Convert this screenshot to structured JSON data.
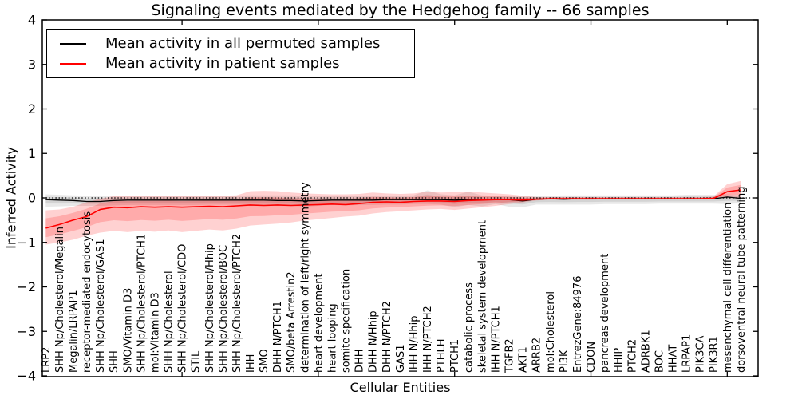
{
  "title": "Signaling events mediated by the Hedgehog family -- 66 samples",
  "axes": {
    "ylabel": "Inferred Activity",
    "xlabel": "Cellular Entities",
    "ylim": [
      -4,
      4
    ],
    "yticks": [
      4,
      3,
      2,
      1,
      0,
      -1,
      -2,
      -3,
      -4
    ],
    "x_major_tick_step": 10
  },
  "colors": {
    "permuted_line": "#000000",
    "patient_line": "#ff0000",
    "band_gray": "#000000",
    "band_red": "#ff0000",
    "axis": "#000000"
  },
  "chart_data": {
    "type": "line",
    "title": "Signaling events mediated by the Hedgehog family -- 66 samples",
    "xlabel": "Cellular Entities",
    "ylabel": "Inferred Activity",
    "ylim": [
      -4,
      4
    ],
    "grid": false,
    "legend_position": "upper left",
    "reference_line": {
      "y": 0,
      "style": "dotted",
      "color": "#000000"
    },
    "categories": [
      "LRP2",
      "SHH Np/Cholesterol/Megalin",
      "Megalin/LRPAP1",
      "receptor-mediated endocytosis",
      "SHH Np/Cholesterol/GAS1",
      "SHH",
      "SMO/Vitamin D3",
      "SHH Np/Cholesterol/PTCH1",
      "mol:Vitamin D3",
      "SHH Np/Cholesterol",
      "SHH Np/Cholesterol/CDO",
      "STIL",
      "SHH Np/Cholesterol/Hhip",
      "SHH Np/Cholesterol/BOC",
      "SHH Np/Cholesterol/PTCH2",
      "IHH",
      "SMO",
      "DHH N/PTCH1",
      "SMO/beta Arrestin2",
      "determination of left/right symmetry",
      "heart development",
      "heart looping",
      "somite specification",
      "DHH",
      "DHH N/Hhip",
      "DHH N/PTCH2",
      "GAS1",
      "IHH N/Hhip",
      "IHH N/PTCH2",
      "PTHLH",
      "PTCH1",
      "catabolic process",
      "skeletal system development",
      "IHH N/PTCH1",
      "TGFB2",
      "AKT1",
      "ARRB2",
      "mol:Cholesterol",
      "PI3K",
      "EntrezGene:84976",
      "CDON",
      "pancreas development",
      "HHIP",
      "PTCH2",
      "ADRBK1",
      "BOC",
      "HHAT",
      "LRPAP1",
      "PIK3CA",
      "PIK3R1",
      "mesenchymal cell differentiation",
      "dorsoventral neural tube patterning"
    ],
    "series": [
      {
        "name": "Mean activity in all permuted samples",
        "color": "#000000",
        "values": [
          -0.04,
          -0.05,
          -0.06,
          -0.08,
          -0.08,
          -0.06,
          -0.05,
          -0.05,
          -0.05,
          -0.05,
          -0.05,
          -0.05,
          -0.05,
          -0.05,
          -0.05,
          -0.05,
          -0.05,
          -0.06,
          -0.06,
          -0.07,
          -0.06,
          -0.05,
          -0.05,
          -0.05,
          -0.05,
          -0.04,
          -0.04,
          -0.04,
          -0.04,
          -0.04,
          -0.05,
          -0.04,
          -0.04,
          -0.03,
          -0.04,
          -0.07,
          -0.03,
          -0.02,
          -0.03,
          -0.02,
          -0.02,
          -0.02,
          -0.02,
          -0.02,
          -0.02,
          -0.02,
          -0.02,
          -0.02,
          -0.02,
          -0.02,
          0.02,
          -0.01
        ],
        "band_low": [
          -0.2,
          -0.19,
          -0.18,
          -0.18,
          -0.18,
          -0.17,
          -0.16,
          -0.16,
          -0.16,
          -0.16,
          -0.16,
          -0.16,
          -0.15,
          -0.15,
          -0.15,
          -0.15,
          -0.16,
          -0.16,
          -0.17,
          -0.2,
          -0.18,
          -0.16,
          -0.17,
          -0.16,
          -0.16,
          -0.15,
          -0.15,
          -0.14,
          -0.14,
          -0.15,
          -0.21,
          -0.16,
          -0.19,
          -0.14,
          -0.2,
          -0.21,
          -0.15,
          -0.15,
          -0.15,
          -0.15,
          -0.15,
          -0.14,
          -0.14,
          -0.14,
          -0.14,
          -0.13,
          -0.13,
          -0.13,
          -0.13,
          -0.13,
          -0.14,
          -0.12
        ],
        "band_high": [
          0.08,
          0.07,
          0.06,
          0.05,
          0.05,
          0.05,
          0.05,
          0.05,
          0.05,
          0.05,
          0.05,
          0.05,
          0.05,
          0.05,
          0.05,
          0.06,
          0.06,
          0.06,
          0.06,
          0.05,
          0.05,
          0.05,
          0.05,
          0.05,
          0.05,
          0.05,
          0.05,
          0.06,
          0.17,
          0.08,
          0.06,
          0.14,
          0.06,
          0.05,
          0.05,
          0.05,
          0.05,
          0.05,
          0.06,
          0.06,
          0.06,
          0.06,
          0.06,
          0.06,
          0.06,
          0.06,
          0.06,
          0.07,
          0.07,
          0.07,
          0.08,
          0.06
        ]
      },
      {
        "name": "Mean activity in patient samples",
        "color": "#ff0000",
        "values": [
          -0.68,
          -0.6,
          -0.5,
          -0.42,
          -0.26,
          -0.21,
          -0.22,
          -0.2,
          -0.21,
          -0.2,
          -0.21,
          -0.2,
          -0.19,
          -0.2,
          -0.18,
          -0.16,
          -0.17,
          -0.16,
          -0.17,
          -0.16,
          -0.15,
          -0.14,
          -0.15,
          -0.13,
          -0.1,
          -0.09,
          -0.1,
          -0.08,
          -0.07,
          -0.07,
          -0.08,
          -0.06,
          -0.05,
          -0.04,
          -0.04,
          -0.05,
          -0.03,
          -0.02,
          -0.02,
          -0.02,
          -0.02,
          -0.02,
          -0.02,
          -0.02,
          -0.02,
          -0.02,
          -0.02,
          -0.02,
          -0.02,
          -0.01,
          0.14,
          0.18
        ],
        "band_low": [
          -1.05,
          -1.0,
          -0.94,
          -0.85,
          -0.78,
          -0.74,
          -0.77,
          -0.74,
          -0.76,
          -0.73,
          -0.77,
          -0.74,
          -0.71,
          -0.73,
          -0.69,
          -0.62,
          -0.6,
          -0.58,
          -0.55,
          -0.51,
          -0.48,
          -0.45,
          -0.42,
          -0.4,
          -0.35,
          -0.32,
          -0.3,
          -0.28,
          -0.26,
          -0.25,
          -0.27,
          -0.24,
          -0.21,
          -0.18,
          -0.14,
          -0.1,
          -0.06,
          -0.04,
          -0.04,
          -0.04,
          -0.04,
          -0.03,
          -0.03,
          -0.03,
          -0.03,
          -0.03,
          -0.03,
          -0.03,
          -0.03,
          -0.02,
          0.0,
          -0.02
        ],
        "band_high": [
          -0.28,
          -0.26,
          -0.2,
          -0.1,
          -0.02,
          0.04,
          0.05,
          0.04,
          0.05,
          0.05,
          0.04,
          0.04,
          0.05,
          0.05,
          0.06,
          0.15,
          0.16,
          0.15,
          0.12,
          0.1,
          0.09,
          0.08,
          0.08,
          0.09,
          0.12,
          0.1,
          0.09,
          0.1,
          0.14,
          0.12,
          0.13,
          0.14,
          0.12,
          0.1,
          0.08,
          0.05,
          0.02,
          0.02,
          0.02,
          0.02,
          0.02,
          0.02,
          0.02,
          0.02,
          0.02,
          0.02,
          0.02,
          0.02,
          0.02,
          0.03,
          0.31,
          0.38
        ]
      }
    ]
  },
  "legend": {
    "entries": [
      {
        "label": "Mean activity in all permuted samples",
        "color": "#000000"
      },
      {
        "label": "Mean activity in patient samples",
        "color": "#ff0000"
      }
    ]
  }
}
